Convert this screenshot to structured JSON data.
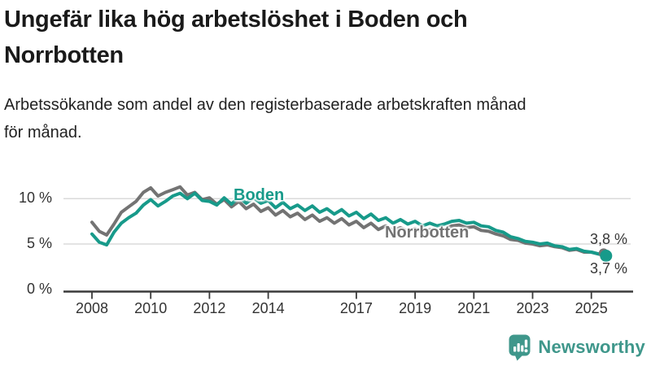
{
  "header": {
    "title": "Ungefär lika hög arbetslöshet i Boden och\nNorrbotten",
    "subtitle": "Arbetssökande som andel av den registerbaserade arbetskraften månad\nför månad."
  },
  "chart_data": {
    "type": "line",
    "unit": "%",
    "grid": true,
    "x_start_year": 2008,
    "points_per_year": 4,
    "x_axis": {
      "tick_years": [
        2008,
        2010,
        2012,
        2014,
        2017,
        2019,
        2021,
        2023,
        2025
      ],
      "tick_labels": [
        "2008",
        "2010",
        "2012",
        "2014",
        "2017",
        "2019",
        "2021",
        "2023",
        "2025"
      ]
    },
    "y_axis": {
      "ticks": [
        {
          "value": 0,
          "label": "0 %"
        },
        {
          "value": 5,
          "label": "5 %"
        },
        {
          "value": 10,
          "label": "10 %"
        }
      ],
      "range": [
        0,
        12
      ]
    },
    "series": [
      {
        "name": "Norrbotten",
        "color": "#737373",
        "end_value_label": "3,8 %",
        "values": [
          7.4,
          6.4,
          6.0,
          7.2,
          8.5,
          9.1,
          9.7,
          10.7,
          11.2,
          10.3,
          10.7,
          11.0,
          11.3,
          10.4,
          10.7,
          9.9,
          10.1,
          9.4,
          9.9,
          9.1,
          9.7,
          8.9,
          9.4,
          8.6,
          9.0,
          8.2,
          8.7,
          8.0,
          8.4,
          7.7,
          8.2,
          7.5,
          7.9,
          7.3,
          7.8,
          7.1,
          7.5,
          6.8,
          7.3,
          6.6,
          7.0,
          6.5,
          6.8,
          6.4,
          6.7,
          6.3,
          6.6,
          6.4,
          6.6,
          7.0,
          7.1,
          6.8,
          6.9,
          6.5,
          6.4,
          6.1,
          5.9,
          5.5,
          5.4,
          5.1,
          5.0,
          4.8,
          4.9,
          4.7,
          4.6,
          4.3,
          4.4,
          4.1,
          4.1,
          3.9,
          3.8
        ]
      },
      {
        "name": "Boden",
        "color": "#179a8a",
        "end_value_label": "3,7 %",
        "values": [
          6.1,
          5.2,
          4.9,
          6.3,
          7.3,
          7.9,
          8.4,
          9.3,
          9.9,
          9.2,
          9.7,
          10.3,
          10.6,
          10.0,
          10.6,
          9.8,
          9.7,
          9.3,
          10.1,
          9.4,
          10.2,
          9.5,
          10.1,
          9.5,
          9.8,
          9.0,
          9.6,
          8.9,
          9.3,
          8.7,
          9.2,
          8.5,
          8.9,
          8.3,
          8.8,
          8.1,
          8.5,
          7.8,
          8.3,
          7.6,
          7.9,
          7.3,
          7.7,
          7.2,
          7.5,
          7.0,
          7.3,
          7.0,
          7.2,
          7.5,
          7.6,
          7.3,
          7.4,
          7.0,
          6.9,
          6.5,
          6.3,
          5.8,
          5.6,
          5.3,
          5.2,
          5.0,
          5.1,
          4.8,
          4.7,
          4.4,
          4.5,
          4.2,
          4.1,
          3.9,
          3.7
        ]
      }
    ],
    "colors": {
      "grid": "#dadada",
      "axis": "#3a3a3a",
      "tick_text": "#333333"
    }
  },
  "branding": {
    "logo_text": "Newsworthy",
    "logo_icon": "bar-chart-bubble-icon",
    "color": "#3f978b"
  }
}
